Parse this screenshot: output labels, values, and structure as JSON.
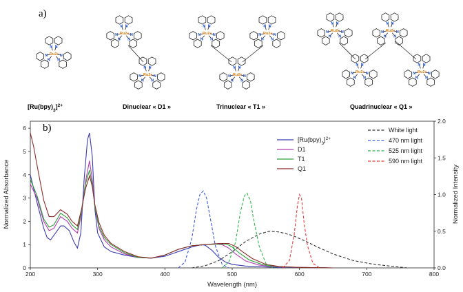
{
  "panel_a": {
    "label": "a)",
    "captions": {
      "ru": "[Ru(bpy)3]2+",
      "d1": "Dinuclear « D1 »",
      "t1": "Trinuclear « T1 »",
      "q1": "Quadrinuclear « Q1 »"
    },
    "atom_n": "N",
    "atom_ru": "Ru2+",
    "colors": {
      "nitrogen": "#1f4fd1",
      "ruthenium": "#e07a10"
    }
  },
  "panel_b": {
    "label": "b)"
  },
  "chart_data": {
    "type": "line",
    "xlabel": "Wavelength (nm)",
    "ylabel": "Normalized Absorbance",
    "y2label": "Normalized Intensity",
    "xlim": [
      200,
      800
    ],
    "ylim": [
      0,
      6.3
    ],
    "y2lim": [
      0,
      2
    ],
    "xticks": [
      200,
      300,
      400,
      500,
      600,
      700,
      800
    ],
    "yticks": [
      0,
      1,
      2,
      3,
      4,
      5,
      6
    ],
    "y2ticks": [
      0,
      0.5,
      1,
      1.5,
      2
    ],
    "y2ticklabels": [
      "0.0",
      "0.5",
      "1.0",
      "1.5",
      "2.0"
    ],
    "grid": false,
    "series": [
      {
        "name": "[Ru(bpy)3]2+",
        "axis": "left",
        "style": "solid",
        "color": "#3b3bb0",
        "x": [
          200,
          210,
          220,
          225,
          230,
          240,
          245,
          250,
          258,
          265,
          270,
          275,
          280,
          285,
          288,
          292,
          296,
          300,
          310,
          320,
          340,
          360,
          380,
          400,
          420,
          440,
          450,
          455,
          460,
          470,
          480,
          490,
          500,
          520,
          540,
          560,
          600,
          650
        ],
        "y": [
          4.0,
          2.8,
          1.7,
          1.3,
          1.2,
          1.6,
          1.8,
          1.8,
          1.6,
          1.1,
          0.85,
          1.5,
          3.8,
          5.5,
          5.8,
          4.8,
          2.5,
          1.5,
          0.9,
          0.7,
          0.55,
          0.45,
          0.42,
          0.5,
          0.7,
          0.9,
          0.97,
          1.0,
          0.97,
          0.75,
          0.45,
          0.25,
          0.15,
          0.08,
          0.05,
          0.03,
          0.02,
          0.0
        ]
      },
      {
        "name": "D1",
        "axis": "left",
        "style": "solid",
        "color": "#b03bb0",
        "x": [
          200,
          210,
          220,
          228,
          235,
          245,
          255,
          262,
          270,
          276,
          282,
          288,
          292,
          296,
          302,
          310,
          320,
          340,
          360,
          380,
          400,
          420,
          440,
          460,
          475,
          485,
          495,
          505,
          520,
          540,
          560,
          600,
          650
        ],
        "y": [
          3.6,
          3.0,
          2.0,
          1.6,
          1.7,
          2.2,
          2.0,
          1.7,
          1.5,
          2.3,
          3.7,
          4.6,
          3.8,
          2.6,
          1.7,
          1.2,
          0.9,
          0.6,
          0.45,
          0.42,
          0.55,
          0.8,
          0.95,
          1.0,
          1.02,
          1.0,
          0.85,
          0.6,
          0.3,
          0.12,
          0.05,
          0.02,
          0.0
        ]
      },
      {
        "name": "T1",
        "axis": "left",
        "style": "solid",
        "color": "#2e9e3a",
        "x": [
          200,
          210,
          220,
          228,
          235,
          245,
          255,
          262,
          270,
          276,
          282,
          288,
          292,
          296,
          302,
          310,
          320,
          340,
          360,
          380,
          400,
          420,
          440,
          460,
          480,
          492,
          500,
          510,
          525,
          545,
          565,
          600,
          650
        ],
        "y": [
          3.8,
          3.1,
          2.1,
          1.75,
          1.85,
          2.35,
          2.15,
          1.85,
          1.65,
          2.4,
          3.6,
          4.2,
          3.6,
          2.6,
          1.8,
          1.3,
          1.0,
          0.65,
          0.45,
          0.42,
          0.55,
          0.8,
          0.95,
          1.0,
          1.03,
          1.02,
          0.9,
          0.65,
          0.35,
          0.14,
          0.06,
          0.02,
          0.0
        ]
      },
      {
        "name": "Q1",
        "axis": "left",
        "style": "solid",
        "color": "#8a2a2a",
        "x": [
          200,
          205,
          210,
          220,
          228,
          235,
          245,
          255,
          262,
          270,
          276,
          282,
          288,
          292,
          296,
          302,
          310,
          320,
          340,
          360,
          380,
          400,
          420,
          440,
          460,
          480,
          495,
          505,
          515,
          530,
          550,
          570,
          600,
          650
        ],
        "y": [
          5.8,
          5.2,
          4.4,
          2.9,
          2.2,
          2.2,
          2.5,
          2.3,
          2.0,
          1.8,
          2.5,
          3.4,
          3.95,
          3.5,
          2.7,
          1.95,
          1.4,
          1.05,
          0.7,
          0.48,
          0.42,
          0.55,
          0.8,
          0.95,
          1.0,
          1.05,
          1.05,
          0.92,
          0.7,
          0.4,
          0.15,
          0.06,
          0.02,
          0.0
        ]
      },
      {
        "name": "White light",
        "axis": "right",
        "style": "dashed",
        "color": "#333333",
        "x": [
          440,
          460,
          480,
          500,
          520,
          540,
          555,
          570,
          590,
          610,
          630,
          650,
          680,
          710,
          740,
          760
        ],
        "y": [
          0.0,
          0.03,
          0.1,
          0.22,
          0.36,
          0.46,
          0.5,
          0.49,
          0.44,
          0.36,
          0.27,
          0.19,
          0.1,
          0.05,
          0.02,
          0.0
        ]
      },
      {
        "name": "470 nm light",
        "axis": "right",
        "style": "dashed",
        "color": "#3b5bd9",
        "x": [
          420,
          430,
          440,
          447,
          452,
          457,
          462,
          467,
          475,
          485,
          495
        ],
        "y": [
          0.0,
          0.08,
          0.4,
          0.8,
          1.0,
          1.05,
          0.95,
          0.7,
          0.3,
          0.05,
          0.0
        ]
      },
      {
        "name": "525 nm light",
        "axis": "right",
        "style": "dashed",
        "color": "#2eb84a",
        "x": [
          485,
          495,
          505,
          512,
          518,
          522,
          527,
          532,
          540,
          550,
          560
        ],
        "y": [
          0.0,
          0.08,
          0.35,
          0.75,
          0.98,
          1.02,
          0.92,
          0.65,
          0.3,
          0.06,
          0.0
        ]
      },
      {
        "name": "590 nm light",
        "axis": "right",
        "style": "dashed",
        "color": "#e03b3b",
        "x": [
          575,
          585,
          592,
          597,
          600,
          603,
          607,
          612,
          620,
          630
        ],
        "y": [
          0.0,
          0.1,
          0.45,
          0.85,
          1.0,
          0.95,
          0.6,
          0.3,
          0.06,
          0.0
        ]
      }
    ],
    "legend_left": [
      "[Ru(bpy)3]2+",
      "D1",
      "T1",
      "Q1"
    ],
    "legend_right": [
      "White light",
      "470 nm light",
      "525 nm light",
      "590 nm light"
    ],
    "legend_placement": "top-right"
  }
}
